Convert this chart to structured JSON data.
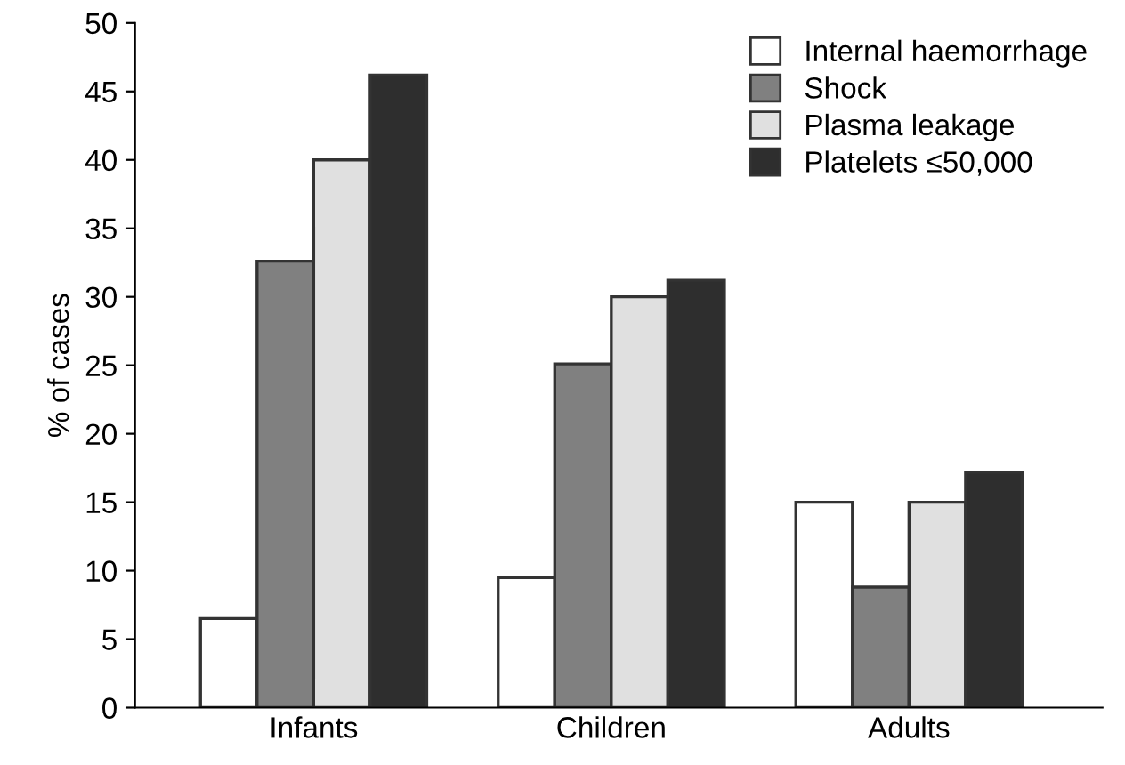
{
  "chart_data": {
    "type": "bar",
    "ylabel": "% of cases",
    "categories": [
      "Infants",
      "Children",
      "Adults"
    ],
    "series": [
      {
        "name": "Internal haemorrhage",
        "color": "#ffffff",
        "values": [
          6.5,
          9.5,
          15
        ]
      },
      {
        "name": "Shock",
        "color": "#808080",
        "values": [
          32.6,
          25.1,
          8.8
        ]
      },
      {
        "name": "Plasma leakage",
        "color": "#e0e0e0",
        "values": [
          40,
          30,
          15
        ]
      },
      {
        "name": "Platelets ≤50,000",
        "color": "#2e2e2e",
        "values": [
          46.2,
          31.2,
          17.2
        ]
      }
    ],
    "ylim": [
      0,
      50
    ],
    "yticks": [
      0,
      5,
      10,
      15,
      20,
      25,
      30,
      35,
      40,
      45,
      50
    ],
    "grid": false,
    "legend": "top right"
  }
}
